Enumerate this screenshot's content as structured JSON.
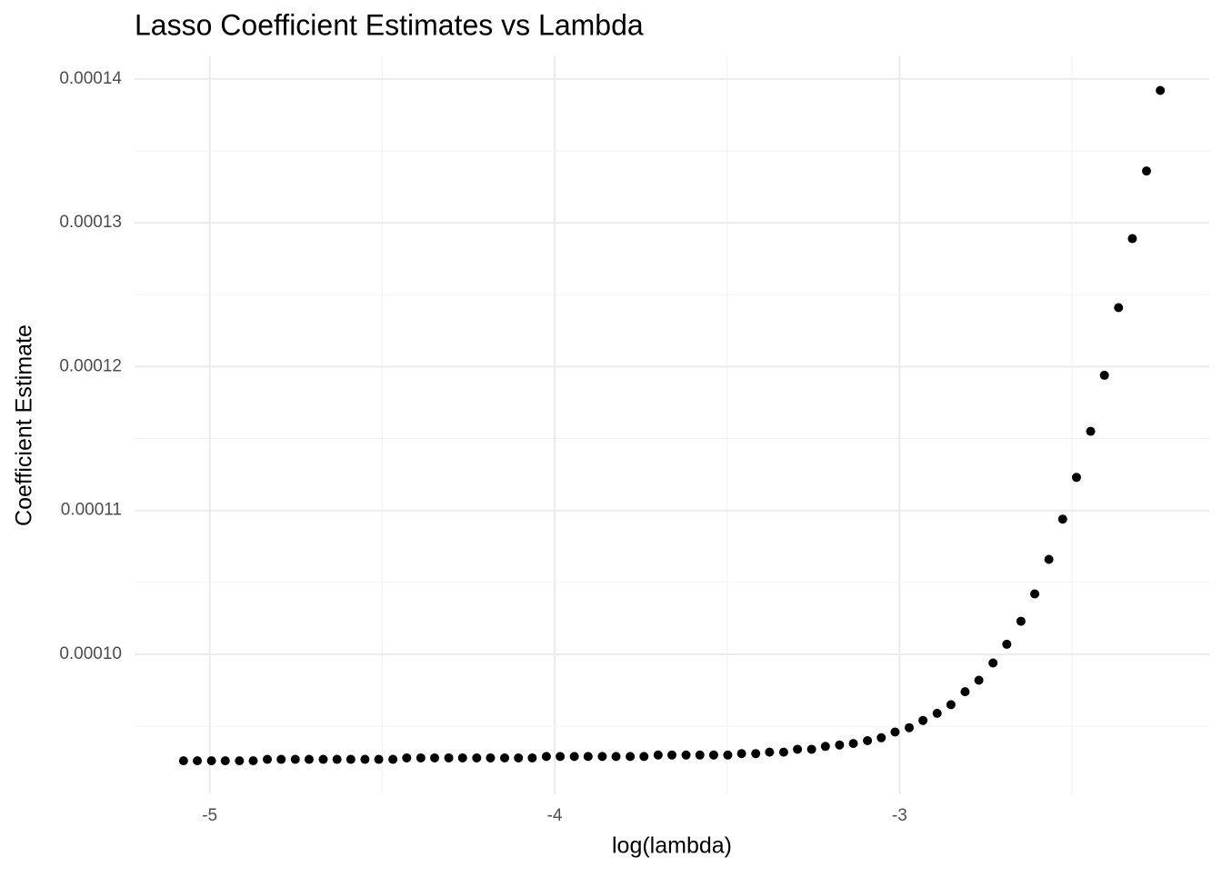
{
  "chart_data": {
    "type": "scatter",
    "title": "Lasso Coefficient Estimates vs Lambda",
    "x_label": "log(lambda)",
    "y_label": "Coefficient Estimate",
    "color": "#000000",
    "grid": true,
    "xlim": [
      -5.218,
      -2.102
    ],
    "ylim": [
      9.027e-05,
      0.00014157
    ],
    "xticks": [
      -5,
      -4,
      -3
    ],
    "xminor": [
      -4.5,
      -3.5,
      -2.5
    ],
    "yticks": [
      {
        "value": 0.0001,
        "label": "0.00010"
      },
      {
        "value": 0.00011,
        "label": "0.00011"
      },
      {
        "value": 0.00012,
        "label": "0.00012"
      },
      {
        "value": 0.00013,
        "label": "0.00013"
      },
      {
        "value": 0.00014,
        "label": "0.00014"
      }
    ],
    "yminor": [
      9.5e-05,
      0.000105,
      0.000115,
      0.000125,
      0.000135
    ],
    "x": [
      -5.076,
      -5.036,
      -4.995,
      -4.955,
      -4.914,
      -4.874,
      -4.833,
      -4.793,
      -4.752,
      -4.712,
      -4.671,
      -4.631,
      -4.591,
      -4.55,
      -4.51,
      -4.469,
      -4.429,
      -4.388,
      -4.348,
      -4.307,
      -4.267,
      -4.226,
      -4.186,
      -4.145,
      -4.105,
      -4.065,
      -4.024,
      -3.984,
      -3.943,
      -3.903,
      -3.862,
      -3.822,
      -3.781,
      -3.741,
      -3.7,
      -3.66,
      -3.619,
      -3.579,
      -3.539,
      -3.498,
      -3.458,
      -3.417,
      -3.377,
      -3.336,
      -3.296,
      -3.255,
      -3.215,
      -3.174,
      -3.134,
      -3.093,
      -3.053,
      -3.013,
      -2.972,
      -2.932,
      -2.891,
      -2.851,
      -2.81,
      -2.77,
      -2.729,
      -2.689,
      -2.648,
      -2.608,
      -2.567,
      -2.527,
      -2.487,
      -2.446,
      -2.406,
      -2.365,
      -2.325,
      -2.284,
      -2.244
    ],
    "values": [
      9.26e-05,
      9.26e-05,
      9.26e-05,
      9.26e-05,
      9.26e-05,
      9.26e-05,
      9.27e-05,
      9.27e-05,
      9.27e-05,
      9.27e-05,
      9.27e-05,
      9.27e-05,
      9.27e-05,
      9.27e-05,
      9.27e-05,
      9.27e-05,
      9.28e-05,
      9.28e-05,
      9.28e-05,
      9.28e-05,
      9.28e-05,
      9.28e-05,
      9.28e-05,
      9.28e-05,
      9.28e-05,
      9.28e-05,
      9.29e-05,
      9.29e-05,
      9.29e-05,
      9.29e-05,
      9.29e-05,
      9.29e-05,
      9.29e-05,
      9.29e-05,
      9.3e-05,
      9.3e-05,
      9.3e-05,
      9.3e-05,
      9.3e-05,
      9.3e-05,
      9.31e-05,
      9.31e-05,
      9.32e-05,
      9.32e-05,
      9.34e-05,
      9.34e-05,
      9.36e-05,
      9.37e-05,
      9.38e-05,
      9.4e-05,
      9.42e-05,
      9.46e-05,
      9.49e-05,
      9.54e-05,
      9.59e-05,
      9.65e-05,
      9.74e-05,
      9.82e-05,
      9.94e-05,
      0.0001007,
      0.0001023,
      0.0001042,
      0.0001066,
      0.0001094,
      0.0001123,
      0.0001155,
      0.0001194,
      0.0001241,
      0.0001289,
      0.0001336,
      0.0001392
    ]
  }
}
